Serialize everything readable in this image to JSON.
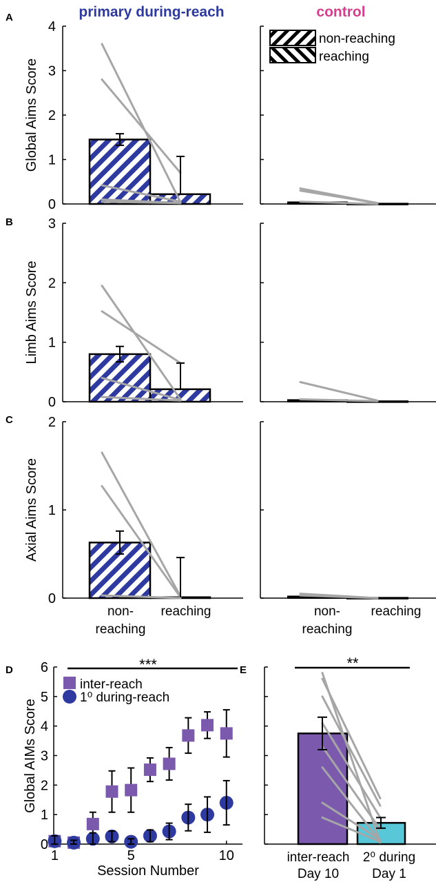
{
  "colors": {
    "primary": "#2E3A9F",
    "control": "#D63F8E",
    "inter_reach": "#7B5AAE",
    "secondary": "#58C8D8",
    "subject_line": "#A6A6A6",
    "axis": "#000000"
  },
  "chart_data": [
    {
      "id": "A",
      "type": "bar",
      "panel_letter": "A",
      "group_titles": [
        "primary during-reach",
        "control"
      ],
      "ylabel": "Global Aims Score",
      "ylim": [
        0,
        4
      ],
      "yticks": [
        "0",
        "1",
        "2",
        "3",
        "4"
      ],
      "legend": [
        "non-reaching",
        "reaching"
      ],
      "groups": [
        {
          "name": "primary during-reach",
          "values": [
            1.45,
            0.22
          ],
          "errors": [
            0.13,
            0.85
          ],
          "subjects": [
            [
              3.6,
              0.04
            ],
            [
              2.8,
              0.7
            ],
            [
              0.42,
              0.05
            ],
            [
              0.1,
              0.02
            ],
            [
              0.05,
              0.02
            ]
          ]
        },
        {
          "name": "control",
          "values": [
            0.04,
            0.01
          ],
          "errors": [
            0,
            0
          ],
          "subjects": [
            [
              0.35,
              0.02
            ],
            [
              0.3,
              0.02
            ],
            [
              0.05,
              0.0
            ]
          ]
        }
      ]
    },
    {
      "id": "B",
      "type": "bar",
      "panel_letter": "B",
      "ylabel": "Limb Aims Score",
      "ylim": [
        0,
        3
      ],
      "yticks": [
        "0",
        "1",
        "2",
        "3"
      ],
      "groups": [
        {
          "name": "primary during-reach",
          "values": [
            0.8,
            0.21
          ],
          "errors": [
            0.13,
            0.44
          ],
          "subjects": [
            [
              1.95,
              0.04
            ],
            [
              1.52,
              0.65
            ],
            [
              0.4,
              0.03
            ],
            [
              0.08,
              0.02
            ]
          ]
        },
        {
          "name": "control",
          "values": [
            0.03,
            0.01
          ],
          "errors": [
            0,
            0
          ],
          "subjects": [
            [
              0.33,
              0.02
            ],
            [
              0.04,
              0.01
            ]
          ]
        }
      ]
    },
    {
      "id": "C",
      "type": "bar",
      "panel_letter": "C",
      "ylabel": "Axial Aims Score",
      "ylim": [
        0,
        2
      ],
      "yticks": [
        "0",
        "1",
        "2"
      ],
      "categories": [
        "non-\nreaching",
        "reaching"
      ],
      "groups": [
        {
          "name": "primary during-reach",
          "values": [
            0.63,
            0.01
          ],
          "errors": [
            0.13,
            0.45
          ],
          "subjects": [
            [
              1.65,
              0.02
            ],
            [
              1.27,
              0.01
            ],
            [
              0.03,
              0.0
            ]
          ]
        },
        {
          "name": "control",
          "values": [
            0.02,
            0.005
          ],
          "errors": [
            0,
            0
          ],
          "subjects": [
            [
              0.05,
              0.0
            ],
            [
              0.03,
              0.0
            ]
          ]
        }
      ]
    },
    {
      "id": "D",
      "type": "scatter",
      "panel_letter": "D",
      "xlabel": "Session Number",
      "ylabel": "Global AIMs Score",
      "xlim": [
        1,
        10.6
      ],
      "ylim": [
        0,
        6
      ],
      "xticks": [
        1,
        5,
        10
      ],
      "yticks": [
        0,
        1,
        2,
        3,
        4,
        5,
        6
      ],
      "significance": "***",
      "series": [
        {
          "name": "inter-reach",
          "marker": "square",
          "x": [
            1,
            2,
            3,
            4,
            5,
            6,
            7,
            8,
            9,
            10
          ],
          "y": [
            0.1,
            0.05,
            0.68,
            1.78,
            1.83,
            2.52,
            2.72,
            3.68,
            4.03,
            3.75
          ],
          "err": [
            0.18,
            0.1,
            0.4,
            0.7,
            0.75,
            0.4,
            0.55,
            0.6,
            0.45,
            0.8
          ]
        },
        {
          "name": "1⁰ during-reach",
          "marker": "circle",
          "x": [
            1,
            2,
            3,
            4,
            5,
            6,
            7,
            8,
            9,
            10
          ],
          "y": [
            0.1,
            0.05,
            0.18,
            0.26,
            0.08,
            0.28,
            0.43,
            0.9,
            1.0,
            1.4
          ],
          "err": [
            0.18,
            0.08,
            0.2,
            0.18,
            0.1,
            0.2,
            0.28,
            0.45,
            0.6,
            0.75
          ]
        }
      ]
    },
    {
      "id": "E",
      "type": "bar",
      "panel_letter": "E",
      "ylim": [
        0,
        6
      ],
      "significance": "**",
      "categories": [
        "inter-reach\nDay 10",
        "2⁰ during\nDay 1"
      ],
      "values": [
        3.75,
        0.72
      ],
      "errors": [
        0.55,
        0.18
      ],
      "subjects": [
        [
          5.8,
          0.05
        ],
        [
          5.6,
          1.55
        ],
        [
          5.0,
          1.3
        ],
        [
          4.1,
          0.9
        ],
        [
          3.3,
          0.5
        ],
        [
          2.6,
          0.1
        ],
        [
          1.4,
          0.15
        ],
        [
          0.9,
          0.08
        ]
      ]
    }
  ]
}
